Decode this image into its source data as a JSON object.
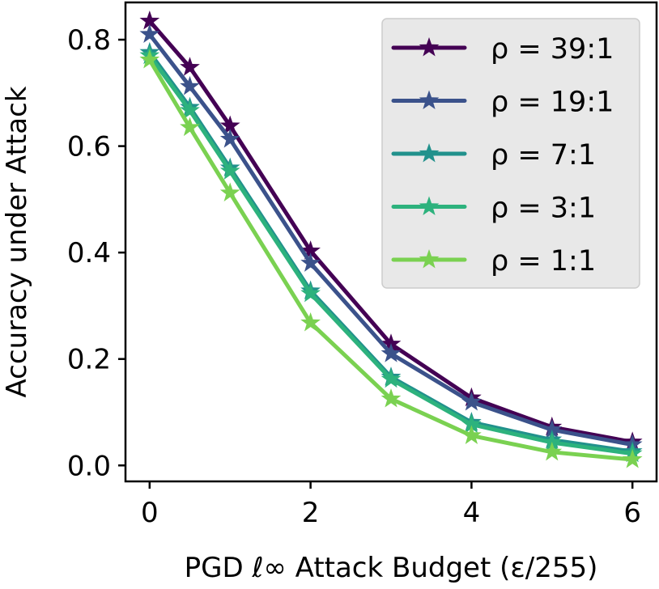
{
  "chart_data": {
    "type": "line",
    "xlabel": "PGD ℓ∞ Attack Budget (ε/255)",
    "ylabel": "Accuracy under Attack",
    "xlim": [
      -0.3,
      6.3
    ],
    "ylim": [
      -0.03,
      0.87
    ],
    "xticks": [
      0,
      2,
      4,
      6
    ],
    "xtick_labels": [
      "0",
      "2",
      "4",
      "6"
    ],
    "yticks": [
      0.0,
      0.2,
      0.4,
      0.6,
      0.8
    ],
    "ytick_labels": [
      "0.0",
      "0.2",
      "0.4",
      "0.6",
      "0.8"
    ],
    "grid": false,
    "legend_position": "top-right",
    "marker": "star",
    "x": [
      0,
      0.5,
      1,
      2,
      3,
      4,
      5,
      6
    ],
    "series": [
      {
        "name": "ρ = 39:1",
        "color": "#440154",
        "values": [
          0.835,
          0.748,
          0.638,
          0.403,
          0.228,
          0.127,
          0.072,
          0.044
        ]
      },
      {
        "name": "ρ = 19:1",
        "color": "#3b528b",
        "values": [
          0.81,
          0.712,
          0.613,
          0.38,
          0.21,
          0.119,
          0.067,
          0.039
        ]
      },
      {
        "name": "ρ = 7:1",
        "color": "#21918c",
        "values": [
          0.776,
          0.673,
          0.559,
          0.328,
          0.166,
          0.081,
          0.048,
          0.026
        ]
      },
      {
        "name": "ρ = 3:1",
        "color": "#2db27d",
        "values": [
          0.77,
          0.667,
          0.553,
          0.323,
          0.162,
          0.077,
          0.043,
          0.022
        ]
      },
      {
        "name": "ρ = 1:1",
        "color": "#7ad151",
        "values": [
          0.762,
          0.635,
          0.512,
          0.268,
          0.125,
          0.056,
          0.025,
          0.011
        ]
      }
    ]
  }
}
